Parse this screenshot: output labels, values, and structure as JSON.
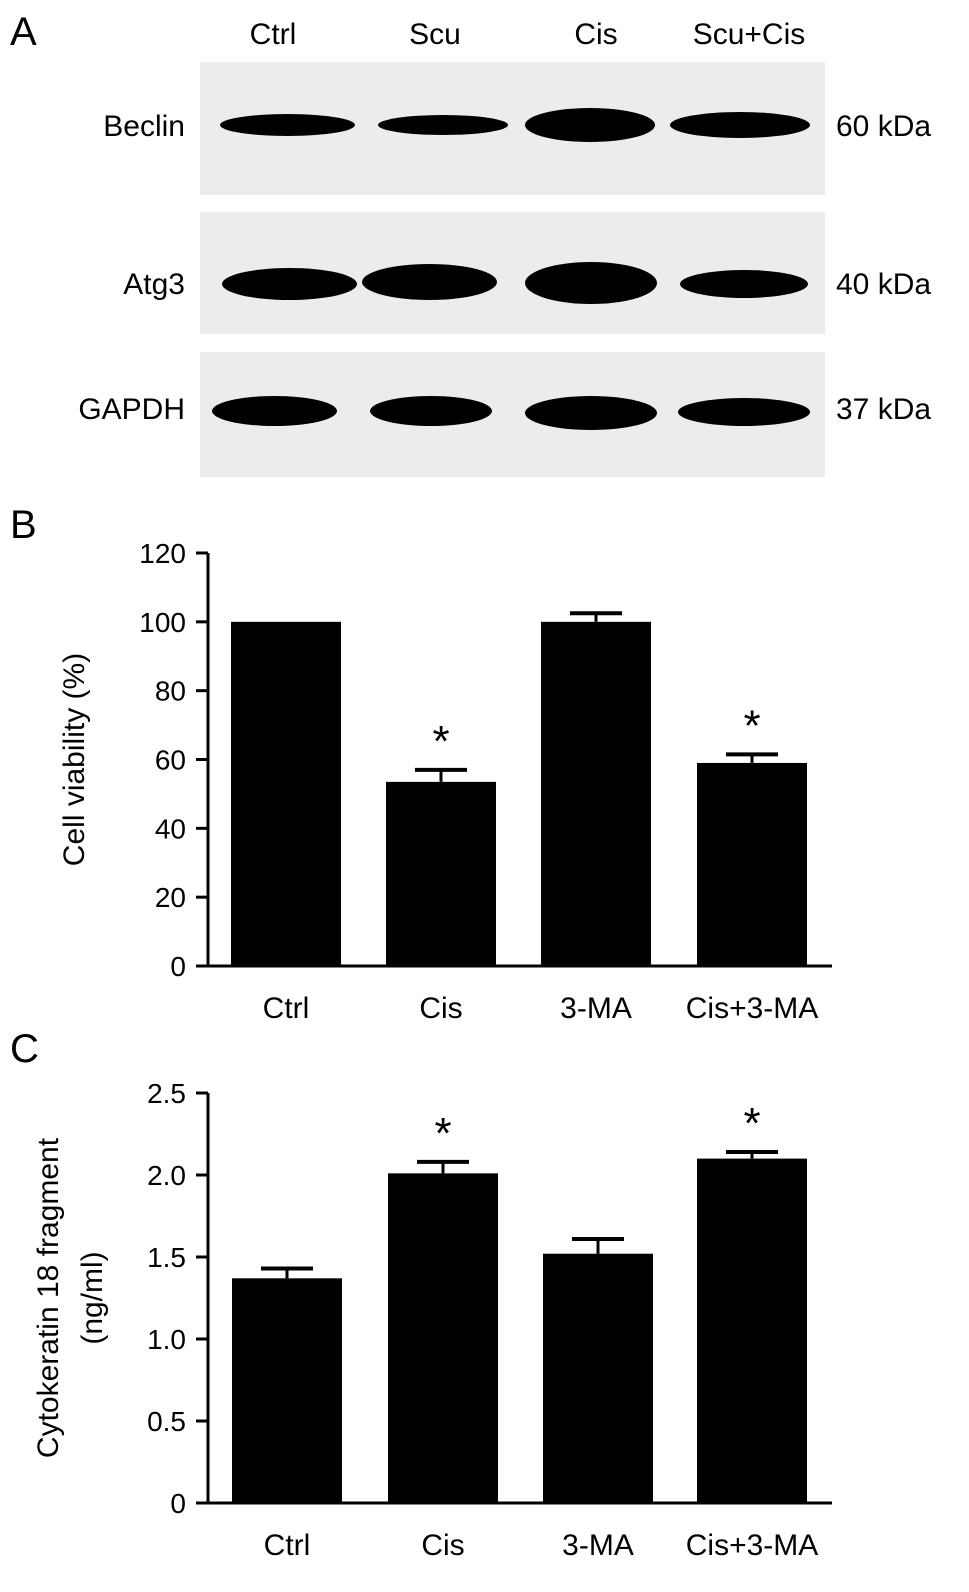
{
  "panels": [
    "A",
    "B",
    "C"
  ],
  "western_blot": {
    "lanes": [
      "Ctrl",
      "Scu",
      "Cis",
      "Scu+Cis"
    ],
    "rows": [
      {
        "protein": "Beclin",
        "size": "60 kDa",
        "intensity": [
          0.55,
          0.35,
          1.0,
          0.75
        ]
      },
      {
        "protein": "Atg3",
        "size": "40 kDa",
        "intensity": [
          0.7,
          0.95,
          1.0,
          0.6
        ]
      },
      {
        "protein": "GAPDH",
        "size": "37 kDa",
        "intensity": [
          0.9,
          0.9,
          0.9,
          0.85
        ]
      }
    ]
  },
  "chart_data": [
    {
      "type": "bar",
      "panel": "B",
      "categories": [
        "Ctrl",
        "Cis",
        "3-MA",
        "Cis+3-MA"
      ],
      "values": [
        100,
        53.5,
        100,
        59
      ],
      "errors": [
        0,
        3.5,
        2.5,
        2.5
      ],
      "significance": [
        "",
        "*",
        "",
        "*"
      ],
      "ylabel": "Cell viability (%)",
      "ylim": [
        0,
        120
      ],
      "yticks": [
        0,
        20,
        40,
        60,
        80,
        100,
        120
      ],
      "ytick_labels": [
        "0",
        "20",
        "40",
        "60",
        "80",
        "100",
        "120"
      ]
    },
    {
      "type": "bar",
      "panel": "C",
      "categories": [
        "Ctrl",
        "Cis",
        "3-MA",
        "Cis+3-MA"
      ],
      "values": [
        1.37,
        2.01,
        1.52,
        2.1
      ],
      "errors": [
        0.06,
        0.07,
        0.09,
        0.04
      ],
      "significance": [
        "",
        "*",
        "",
        "*"
      ],
      "ylabel": "Cytokeratin 18 fragment",
      "ylabel2": "(ng/ml)",
      "ylim": [
        0,
        2.5
      ],
      "yticks": [
        0,
        0.5,
        1.0,
        1.5,
        2.0,
        2.5
      ],
      "ytick_labels": [
        "0",
        "0.5",
        "1.0",
        "1.5",
        "2.0",
        "2.5"
      ]
    }
  ]
}
